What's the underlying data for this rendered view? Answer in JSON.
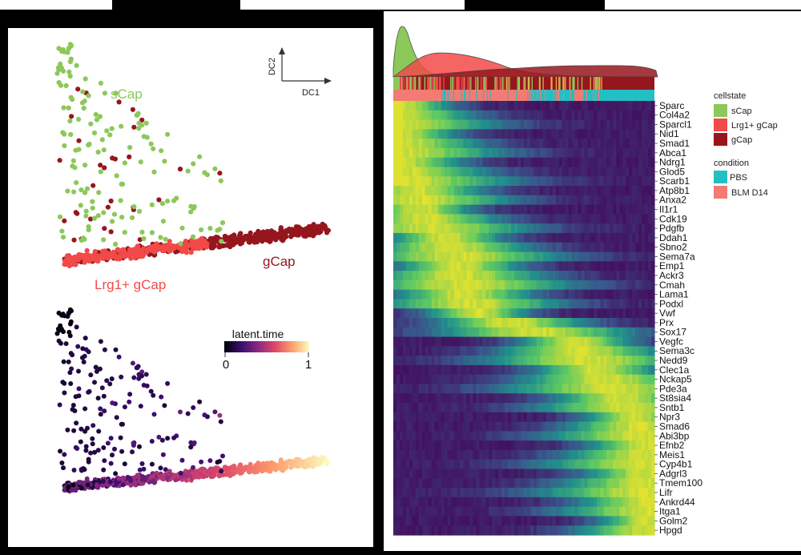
{
  "diffusion_map": {
    "axis_x_label": "DC1",
    "axis_y_label": "DC2",
    "labels": {
      "scap": "sCap",
      "lrg1": "Lrg1+ gCap",
      "gcap": "gCap"
    },
    "colors": {
      "scap": "#8cc85a",
      "lrg1": "#f24a49",
      "gcap": "#96161e"
    }
  },
  "latent_time": {
    "legend_title": "latent.time",
    "tick_min": "0",
    "tick_max": "1"
  },
  "legend": {
    "cellstate_title": "cellstate",
    "cellstate_items": [
      {
        "label": "sCap",
        "color": "#8cc85a"
      },
      {
        "label": "Lrg1+ gCap",
        "color": "#f24a49"
      },
      {
        "label": "gCap",
        "color": "#96161e"
      }
    ],
    "condition_title": "condition",
    "condition_items": [
      {
        "label": "PBS",
        "color": "#22bfc4"
      },
      {
        "label": "BLM D14",
        "color": "#f37b73"
      }
    ]
  },
  "chart_data": {
    "type": "heatmap",
    "colormap": "viridis",
    "genes": [
      "Sparc",
      "Col4a2",
      "Sparcl1",
      "Nid1",
      "Smad1",
      "Abca1",
      "Ndrg1",
      "Glod5",
      "Scarb1",
      "Atp8b1",
      "Anxa2",
      "Il1r1",
      "Cdk19",
      "Pdgfb",
      "Ddah1",
      "Sbno2",
      "Sema7a",
      "Emp1",
      "Ackr3",
      "Cmah",
      "Lama1",
      "Podxl",
      "Vwf",
      "Prx",
      "Sox17",
      "Vegfc",
      "Sema3c",
      "Nedd9",
      "Clec1a",
      "Nckap5",
      "Pde3a",
      "St8sia4",
      "Sntb1",
      "Npr3",
      "Smad6",
      "Abi3bp",
      "Efnb2",
      "Meis1",
      "Cyp4b1",
      "Adgrl3",
      "Tmem100",
      "Lifr",
      "Ankrd44",
      "Itga1",
      "Golm2",
      "Hpgd"
    ],
    "peak_position": [
      0.02,
      0.02,
      0.02,
      0.02,
      0.02,
      0.02,
      0.02,
      0.03,
      0.04,
      0.08,
      0.1,
      0.1,
      0.12,
      0.15,
      0.2,
      0.22,
      0.25,
      0.25,
      0.25,
      0.27,
      0.27,
      0.3,
      0.32,
      0.45,
      0.55,
      0.7,
      0.72,
      0.75,
      0.78,
      0.82,
      0.85,
      0.88,
      0.9,
      0.93,
      0.95,
      0.96,
      0.97,
      0.97,
      0.97,
      0.98,
      0.98,
      0.98,
      0.98,
      0.99,
      0.99,
      0.99
    ]
  }
}
